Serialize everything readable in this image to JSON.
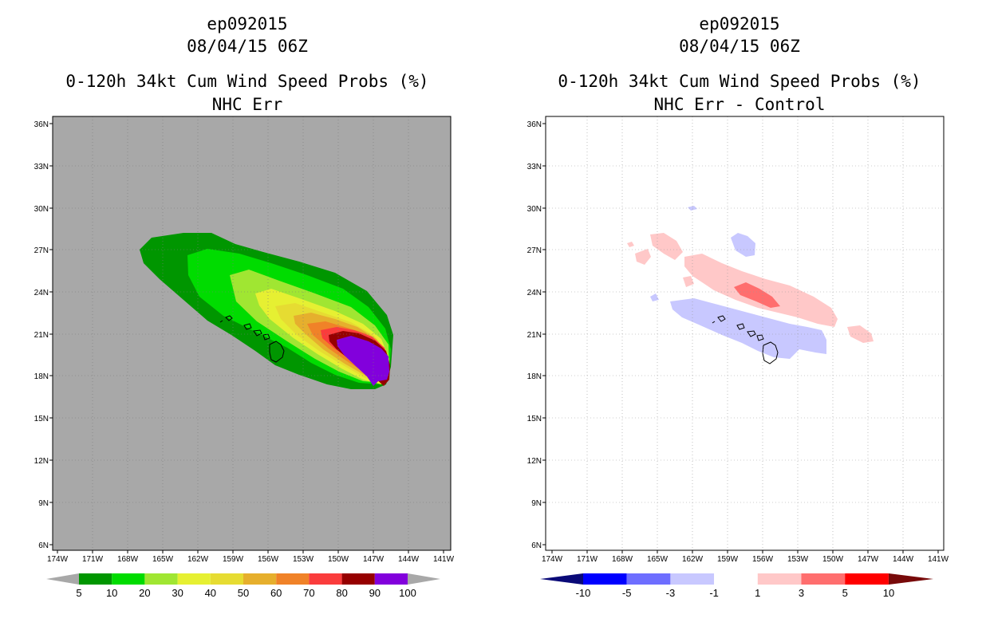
{
  "panels": [
    {
      "id": "left",
      "storm_id": "ep092015",
      "datetime": "08/04/15 06Z",
      "title": "0-120h 34kt Cum Wind Speed Probs (%)",
      "subtitle": "NHC Err",
      "background_color": "#a8a8a8",
      "lat_labels": [
        "36N",
        "33N",
        "30N",
        "27N",
        "24N",
        "21N",
        "18N",
        "15N",
        "12N",
        "9N",
        "6N"
      ],
      "lon_labels": [
        "174W",
        "171W",
        "168W",
        "165W",
        "162W",
        "159W",
        "156W",
        "153W",
        "150W",
        "147W",
        "144W",
        "141W"
      ],
      "colorbar": {
        "colors": [
          "#a8a8a8",
          "#009600",
          "#00dc00",
          "#a0e632",
          "#e6f032",
          "#e6dc32",
          "#e6af2d",
          "#f08228",
          "#fa3c3c",
          "#960000",
          "#8200dc",
          "#a8a8a8"
        ],
        "labels": [
          "5",
          "10",
          "20",
          "30",
          "40",
          "50",
          "60",
          "70",
          "80",
          "90",
          "100"
        ]
      }
    },
    {
      "id": "right",
      "storm_id": "ep092015",
      "datetime": "08/04/15 06Z",
      "title": "0-120h 34kt Cum Wind Speed Probs (%)",
      "subtitle": "NHC Err - Control",
      "background_color": "#ffffff",
      "lat_labels": [
        "36N",
        "33N",
        "30N",
        "27N",
        "24N",
        "21N",
        "18N",
        "15N",
        "12N",
        "9N",
        "6N"
      ],
      "lon_labels": [
        "174W",
        "171W",
        "168W",
        "165W",
        "162W",
        "159W",
        "156W",
        "153W",
        "150W",
        "147W",
        "144W",
        "141W"
      ],
      "colorbar": {
        "colors": [
          "#0a0a78",
          "#0000ff",
          "#6e6eff",
          "#c8c8ff",
          "#ffffff",
          "#ffc8c8",
          "#ff6e6e",
          "#ff0000",
          "#780a0a"
        ],
        "labels": [
          "-10",
          "-5",
          "-3",
          "-1",
          "1",
          "3",
          "5",
          "10"
        ]
      }
    }
  ],
  "colors": {
    "prob_5": "#009600",
    "prob_10": "#00dc00",
    "prob_20": "#a0e632",
    "prob_30": "#e6f032",
    "prob_40": "#e6dc32",
    "prob_50": "#e6af2d",
    "prob_60": "#f08228",
    "prob_70": "#fa3c3c",
    "prob_80": "#960000",
    "prob_90": "#8200dc",
    "diff_neg": "#c8c8ff",
    "diff_pos": "#ffc8c8",
    "diff_pos_strong": "#ff6e6e"
  }
}
